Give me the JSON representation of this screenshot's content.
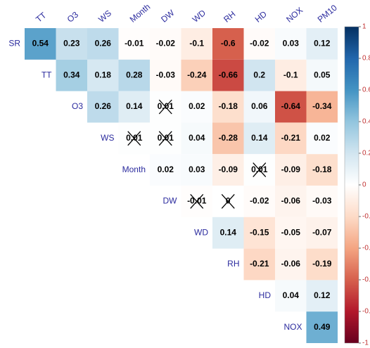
{
  "chart_data": {
    "type": "correlation-heatmap",
    "row_labels": [
      "SR",
      "TT",
      "O3",
      "WS",
      "Month",
      "DW",
      "WD",
      "RH",
      "HD",
      "NOX"
    ],
    "column_labels": [
      "TT",
      "O3",
      "WS",
      "Month",
      "DW",
      "WD",
      "RH",
      "HD",
      "NOX",
      "PM10"
    ],
    "values": [
      [
        0.54,
        0.23,
        0.26,
        -0.01,
        -0.02,
        -0.1,
        -0.6,
        -0.02,
        0.03,
        0.12
      ],
      [
        null,
        0.34,
        0.18,
        0.28,
        -0.03,
        -0.24,
        -0.66,
        0.2,
        -0.1,
        0.05
      ],
      [
        null,
        null,
        0.26,
        0.14,
        0.01,
        0.02,
        -0.18,
        0.06,
        -0.64,
        -0.34
      ],
      [
        null,
        null,
        null,
        0.01,
        0.01,
        0.04,
        -0.28,
        0.14,
        -0.21,
        0.02
      ],
      [
        null,
        null,
        null,
        null,
        0.02,
        0.03,
        -0.09,
        0.01,
        -0.09,
        -0.18
      ],
      [
        null,
        null,
        null,
        null,
        null,
        -0.01,
        0,
        -0.02,
        -0.06,
        -0.03
      ],
      [
        null,
        null,
        null,
        null,
        null,
        null,
        0.14,
        -0.15,
        -0.05,
        -0.07
      ],
      [
        null,
        null,
        null,
        null,
        null,
        null,
        null,
        -0.21,
        -0.06,
        -0.19
      ],
      [
        null,
        null,
        null,
        null,
        null,
        null,
        null,
        null,
        0.04,
        0.12
      ],
      [
        null,
        null,
        null,
        null,
        null,
        null,
        null,
        null,
        null,
        0.49
      ]
    ],
    "crossed": [
      [
        false,
        false,
        false,
        false,
        false,
        false,
        false,
        false,
        false,
        false
      ],
      [
        null,
        false,
        false,
        false,
        false,
        false,
        false,
        false,
        false,
        false
      ],
      [
        null,
        null,
        false,
        false,
        true,
        false,
        false,
        false,
        false,
        false
      ],
      [
        null,
        null,
        null,
        true,
        true,
        false,
        false,
        false,
        false,
        false
      ],
      [
        null,
        null,
        null,
        null,
        false,
        false,
        false,
        true,
        false,
        false
      ],
      [
        null,
        null,
        null,
        null,
        null,
        true,
        true,
        false,
        false,
        false
      ],
      [
        null,
        null,
        null,
        null,
        null,
        null,
        false,
        false,
        false,
        false
      ],
      [
        null,
        null,
        null,
        null,
        null,
        null,
        null,
        false,
        false,
        false
      ],
      [
        null,
        null,
        null,
        null,
        null,
        null,
        null,
        null,
        false,
        false
      ],
      [
        null,
        null,
        null,
        null,
        null,
        null,
        null,
        null,
        null,
        false
      ]
    ],
    "colors": [
      "#67001F",
      "#B2182B",
      "#D6604D",
      "#F4A582",
      "#FDDBC7",
      "#FFFFFF",
      "#D1E5F0",
      "#92C5DE",
      "#4393C3",
      "#2166AC",
      "#053061"
    ],
    "colorbar_lim": [
      -1,
      1
    ],
    "colorbar_ticks": [
      1,
      {
        "value": 0.8,
        "label": "0.8"
      },
      {
        "value": 0.6,
        "label": "0.6"
      },
      {
        "value": 0.4,
        "label": "0.4"
      },
      {
        "value": 0.2,
        "label": "0.2"
      },
      0,
      {
        "value": -0.2,
        "label": "-0.2"
      },
      {
        "value": -0.4,
        "label": "-0.4"
      },
      {
        "value": -0.6,
        "label": "-0.6"
      },
      {
        "value": -0.8,
        "label": "-0.8"
      },
      -1
    ]
  }
}
